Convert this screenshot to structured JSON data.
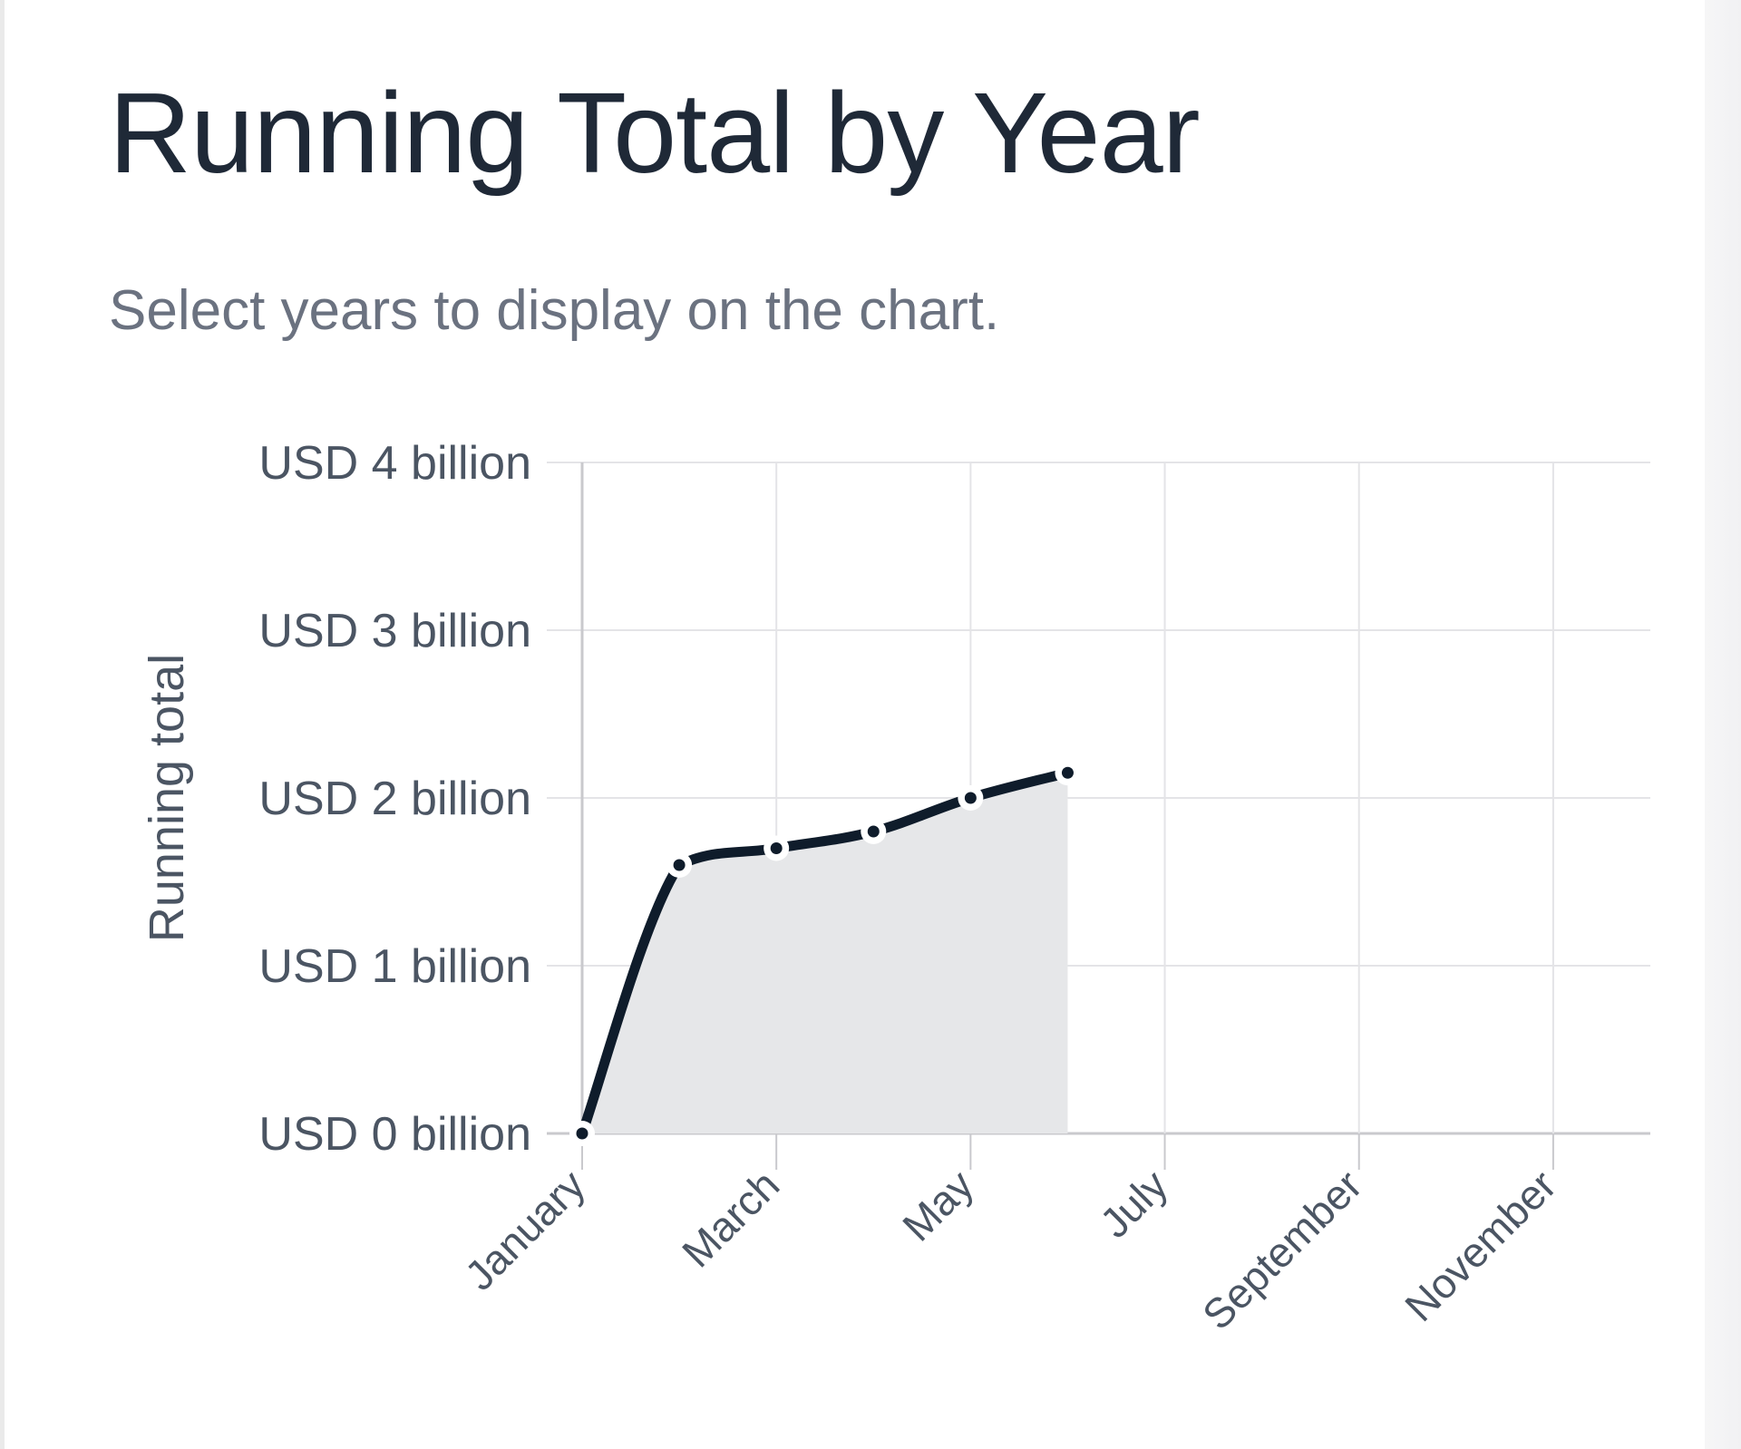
{
  "page": {
    "title": "Running Total by Year",
    "subtitle": "Select years to display on the chart."
  },
  "colors": {
    "title": "#1f2937",
    "subtitle": "#6b7280",
    "axis_text": "#4b5563",
    "grid": "#e4e4e7",
    "axis": "#c9c9cd",
    "line": "#0f1c2b",
    "area": "#e6e7e9",
    "marker_outline": "#ffffff"
  },
  "chart_data": {
    "type": "area",
    "title": "",
    "xlabel": "",
    "ylabel": "Running total",
    "x_ticks": [
      "January",
      "March",
      "May",
      "July",
      "September",
      "November"
    ],
    "y_ticks": [
      "USD 0 billion",
      "USD 1 billion",
      "USD 2 billion",
      "USD 3 billion",
      "USD 4 billion"
    ],
    "xlim": [
      1,
      12
    ],
    "ylim": [
      0,
      4
    ],
    "y_unit": "USD billion",
    "grid": true,
    "series": [
      {
        "x": [
          1,
          2,
          3,
          4,
          5,
          6
        ],
        "values": [
          0,
          1.6,
          1.7,
          1.8,
          2.0,
          2.15
        ]
      }
    ]
  }
}
